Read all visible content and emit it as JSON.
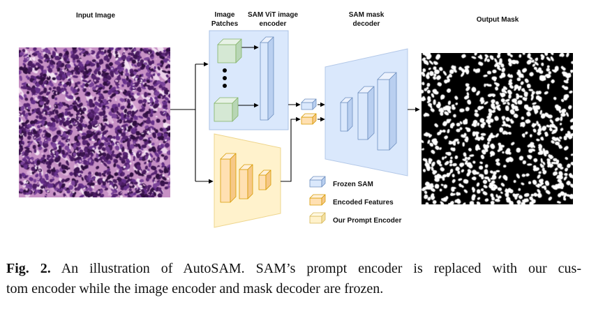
{
  "labels": {
    "input_image": "Input Image",
    "image_patches": [
      "Image",
      "Patches"
    ],
    "sam_vit_encoder": [
      "SAM ViT image",
      "encoder"
    ],
    "sam_mask_decoder": [
      "SAM mask",
      "decoder"
    ],
    "output_mask": "Output Mask"
  },
  "legend": [
    {
      "label": "Frozen SAM",
      "color": "#dae8fc"
    },
    {
      "label": "Encoded Features",
      "color": "#ffe0b2"
    },
    {
      "label": "Our Prompt Encoder",
      "color": "#fff2cc"
    }
  ],
  "colors": {
    "frozen_region": "#dae8fc",
    "prompt_encoder_region": "#fff2cc",
    "mask_decoder_region": "#dae8fc"
  },
  "caption": {
    "figure_label": "Fig. 2.",
    "line1": "An illustration of AutoSAM. SAM’s prompt encoder is replaced with our cus-",
    "line2": "tom encoder while the image encoder and mask decoder are frozen."
  }
}
